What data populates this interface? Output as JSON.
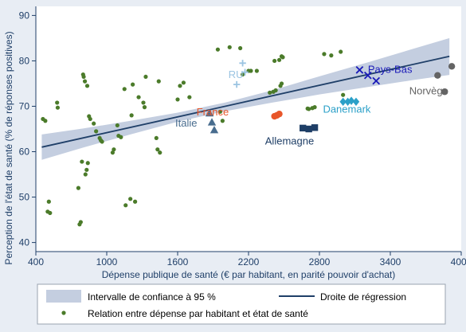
{
  "chart_data": {
    "type": "scatter",
    "xlabel": "Dépense publique de santé (€ par habitant, en parité pouvoir d'achat)",
    "ylabel": "Perception de l'état de santé (% de réponses positives)",
    "xlim": [
      400,
      4000
    ],
    "ylim": [
      38,
      92
    ],
    "xticks": [
      "400",
      "1000",
      "1600",
      "2200",
      "2800",
      "3400",
      "4000"
    ],
    "yticks": [
      "40",
      "50",
      "60",
      "70",
      "80",
      "90"
    ],
    "grid": false,
    "legend_position": "bottom",
    "colors": {
      "background": "#e8edf4",
      "plot_background": "#ffffff",
      "band": "#c4cee0",
      "regression": "#1f3f68",
      "points": "#4b7b2a",
      "axis": "#1f3f68"
    },
    "legend": {
      "ci": "Intervalle de confiance à 95 %",
      "regression": "Droite de régression",
      "points": "Relation entre dépense par habitant et état de santé"
    },
    "confidence_band": {
      "x": [
        450,
        800,
        1200,
        1600,
        2000,
        2400,
        2800,
        3200,
        3600,
        3900
      ],
      "lower": [
        58.2,
        60.9,
        63.8,
        66.6,
        68.9,
        70.8,
        72.6,
        74.2,
        75.8,
        76.9
      ],
      "upper": [
        63.8,
        65.1,
        66.8,
        68.6,
        70.8,
        73.5,
        76.6,
        79.6,
        82.7,
        85.0
      ]
    },
    "regression": {
      "x": [
        450,
        3900
      ],
      "y": [
        61.0,
        81.0
      ]
    },
    "scatter": {
      "name": "Relation entre dépense par habitant et état de santé",
      "points": [
        [
          460,
          67.2
        ],
        [
          480,
          66.8
        ],
        [
          500,
          46.8
        ],
        [
          510,
          49.0
        ],
        [
          520,
          46.5
        ],
        [
          580,
          70.8
        ],
        [
          585,
          69.7
        ],
        [
          760,
          52.0
        ],
        [
          770,
          44.0
        ],
        [
          780,
          44.5
        ],
        [
          790,
          57.8
        ],
        [
          800,
          77.0
        ],
        [
          805,
          76.5
        ],
        [
          815,
          75.5
        ],
        [
          820,
          55.0
        ],
        [
          830,
          56.0
        ],
        [
          835,
          74.5
        ],
        [
          840,
          57.5
        ],
        [
          850,
          67.8
        ],
        [
          860,
          67.2
        ],
        [
          890,
          66.2
        ],
        [
          910,
          64.5
        ],
        [
          940,
          63.0
        ],
        [
          950,
          62.5
        ],
        [
          960,
          62.2
        ],
        [
          1050,
          59.8
        ],
        [
          1060,
          60.5
        ],
        [
          1090,
          65.8
        ],
        [
          1100,
          63.5
        ],
        [
          1120,
          63.2
        ],
        [
          1150,
          73.8
        ],
        [
          1160,
          48.2
        ],
        [
          1200,
          49.6
        ],
        [
          1210,
          68.0
        ],
        [
          1220,
          74.8
        ],
        [
          1240,
          49.0
        ],
        [
          1270,
          72.0
        ],
        [
          1310,
          70.8
        ],
        [
          1320,
          69.8
        ],
        [
          1330,
          76.5
        ],
        [
          1420,
          63.0
        ],
        [
          1430,
          60.5
        ],
        [
          1440,
          75.5
        ],
        [
          1450,
          59.8
        ],
        [
          1600,
          71.5
        ],
        [
          1620,
          74.5
        ],
        [
          1650,
          75.2
        ],
        [
          1700,
          72.0
        ],
        [
          1940,
          82.5
        ],
        [
          2040,
          83.0
        ],
        [
          2130,
          82.8
        ],
        [
          2150,
          77.0
        ],
        [
          2200,
          77.8
        ],
        [
          2220,
          77.8
        ],
        [
          2270,
          77.8
        ],
        [
          2420,
          80.0
        ],
        [
          2460,
          80.2
        ],
        [
          2480,
          81.0
        ],
        [
          2490,
          80.8
        ],
        [
          2380,
          73.0
        ],
        [
          2410,
          73.2
        ],
        [
          2430,
          73.5
        ],
        [
          2470,
          74.5
        ],
        [
          2480,
          75.0
        ],
        [
          2700,
          69.5
        ],
        [
          2710,
          69.4
        ],
        [
          2740,
          69.6
        ],
        [
          2760,
          69.8
        ],
        [
          2840,
          81.5
        ],
        [
          2900,
          81.2
        ],
        [
          2980,
          82.0
        ],
        [
          3000,
          72.5
        ],
        [
          1960,
          68.8
        ],
        [
          1980,
          66.8
        ]
      ]
    },
    "countries": [
      {
        "name": "RU",
        "color": "#9bc4e2",
        "marker": "plus",
        "label_x": 2030,
        "label_y": 76.2,
        "points": [
          [
            2100,
            74.8
          ],
          [
            2150,
            79.5
          ],
          [
            2170,
            77.5
          ]
        ]
      },
      {
        "name": "Italie",
        "color": "#486c8e",
        "marker": "triangle",
        "label_x": 1580,
        "label_y": 65.5,
        "points": [
          [
            1870,
            68.5
          ],
          [
            1890,
            66.5
          ],
          [
            1910,
            64.8
          ]
        ]
      },
      {
        "name": "France",
        "color": "#e8562a",
        "marker": "circle",
        "label_x": 1760,
        "label_y": 68.0,
        "points": [
          [
            2420,
            67.8
          ],
          [
            2440,
            68.0
          ],
          [
            2460,
            68.3
          ]
        ]
      },
      {
        "name": "Allemagne",
        "color": "#1e3e66",
        "marker": "square",
        "label_x": 2340,
        "label_y": 61.6,
        "points": [
          [
            2660,
            65.2
          ],
          [
            2710,
            65.0
          ],
          [
            2760,
            65.3
          ]
        ]
      },
      {
        "name": "Danemark",
        "color": "#2ba0c8",
        "marker": "diamond",
        "label_x": 2830,
        "label_y": 68.6,
        "points": [
          [
            3000,
            71.0
          ],
          [
            3040,
            71.0
          ],
          [
            3070,
            71.2
          ],
          [
            3110,
            71.0
          ]
        ]
      },
      {
        "name": "Pays-Bas",
        "color": "#1a1ab8",
        "marker": "cross",
        "label_x": 3210,
        "label_y": 77.4,
        "points": [
          [
            3140,
            78.0
          ],
          [
            3210,
            76.8
          ],
          [
            3280,
            75.6
          ]
        ]
      },
      {
        "name": "Norvège",
        "color": "#646464",
        "marker": "circle",
        "label_x": 3560,
        "label_y": 72.6,
        "points": [
          [
            3800,
            76.8
          ],
          [
            3860,
            73.2
          ],
          [
            3920,
            78.8
          ]
        ]
      }
    ]
  }
}
